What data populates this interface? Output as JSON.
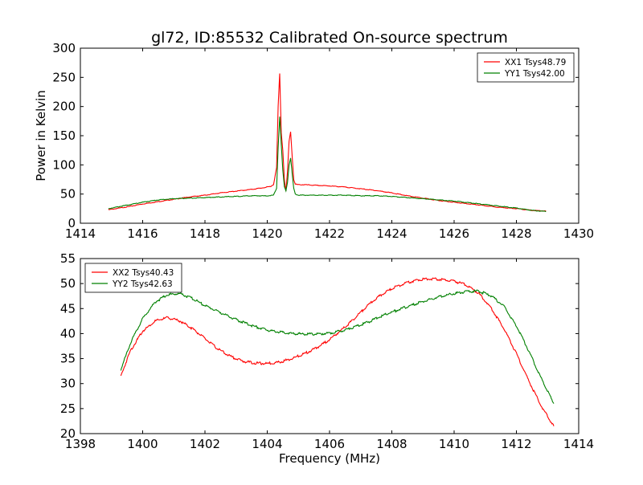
{
  "figure": {
    "title": "gl72, ID:85532 Calibrated On-source spectrum"
  },
  "chart_data": [
    {
      "type": "line",
      "title": "gl72, ID:85532 Calibrated On-source spectrum",
      "xlabel": "",
      "ylabel": "Power in Kelvin",
      "xlim": [
        1414,
        1430
      ],
      "ylim": [
        0,
        300
      ],
      "xticks": [
        1414,
        1416,
        1418,
        1420,
        1422,
        1424,
        1426,
        1428,
        1430
      ],
      "yticks": [
        0,
        50,
        100,
        150,
        200,
        250,
        300
      ],
      "legend_position": "top-right",
      "grid": false,
      "series": [
        {
          "name": "XX1 Tsys48.79",
          "color": "#ff0000",
          "x": [
            1414.9,
            1415.5,
            1416.0,
            1416.5,
            1417.0,
            1417.5,
            1418.0,
            1418.5,
            1419.0,
            1419.5,
            1419.9,
            1420.1,
            1420.2,
            1420.3,
            1420.35,
            1420.4,
            1420.45,
            1420.5,
            1420.55,
            1420.6,
            1420.65,
            1420.7,
            1420.75,
            1420.8,
            1420.85,
            1420.9,
            1421.0,
            1421.2,
            1421.5,
            1422.0,
            1422.5,
            1423.0,
            1423.5,
            1424.0,
            1424.5,
            1425.0,
            1425.5,
            1426.0,
            1426.5,
            1427.0,
            1427.5,
            1428.0,
            1428.5,
            1428.95
          ],
          "y": [
            23,
            28,
            33,
            37,
            41,
            45,
            48,
            52,
            55,
            58,
            61,
            63,
            66,
            95,
            200,
            257,
            155,
            125,
            75,
            55,
            88,
            140,
            157,
            115,
            75,
            67,
            66,
            66,
            65,
            64,
            62,
            59,
            56,
            52,
            47,
            43,
            39,
            36,
            33,
            30,
            27,
            25,
            22,
            21
          ]
        },
        {
          "name": "YY1 Tsys42.00",
          "color": "#008000",
          "x": [
            1414.9,
            1415.5,
            1416.0,
            1416.5,
            1417.0,
            1417.5,
            1418.0,
            1418.5,
            1419.0,
            1419.5,
            1420.0,
            1420.2,
            1420.3,
            1420.35,
            1420.4,
            1420.45,
            1420.5,
            1420.55,
            1420.6,
            1420.65,
            1420.7,
            1420.75,
            1420.8,
            1420.85,
            1420.9,
            1421.0,
            1421.5,
            1422.0,
            1422.5,
            1423.0,
            1423.5,
            1424.0,
            1424.5,
            1425.0,
            1425.5,
            1426.0,
            1426.5,
            1427.0,
            1427.5,
            1428.0,
            1428.5,
            1428.95
          ],
          "y": [
            25,
            31,
            36,
            40,
            42,
            43,
            44,
            45,
            46,
            47,
            47,
            48,
            60,
            130,
            183,
            135,
            90,
            62,
            56,
            70,
            100,
            112,
            85,
            60,
            50,
            48,
            48,
            48,
            48,
            47,
            47,
            46,
            44,
            42,
            40,
            38,
            35,
            32,
            29,
            26,
            22,
            20
          ]
        }
      ]
    },
    {
      "type": "line",
      "title": "",
      "xlabel": "Frequency (MHz)",
      "ylabel": "",
      "xlim": [
        1398,
        1414
      ],
      "ylim": [
        20,
        55
      ],
      "xticks": [
        1398,
        1400,
        1402,
        1404,
        1406,
        1408,
        1410,
        1412,
        1414
      ],
      "yticks": [
        20,
        25,
        30,
        35,
        40,
        45,
        50,
        55
      ],
      "legend_position": "top-left",
      "grid": false,
      "series": [
        {
          "name": "XX2 Tsys40.43",
          "color": "#ff0000",
          "x": [
            1399.3,
            1399.6,
            1400.0,
            1400.4,
            1400.8,
            1401.2,
            1401.6,
            1402.0,
            1402.4,
            1402.8,
            1403.2,
            1403.6,
            1404.0,
            1404.4,
            1404.8,
            1405.2,
            1405.6,
            1406.0,
            1406.4,
            1406.8,
            1407.2,
            1407.6,
            1408.0,
            1408.4,
            1408.8,
            1409.2,
            1409.6,
            1410.0,
            1410.4,
            1410.8,
            1411.2,
            1411.6,
            1412.0,
            1412.4,
            1412.8,
            1413.2
          ],
          "y": [
            31.5,
            36.5,
            40.5,
            42.5,
            43.2,
            42.5,
            41.0,
            39.0,
            37.0,
            35.5,
            34.5,
            34.1,
            34.0,
            34.3,
            35.0,
            36.0,
            37.2,
            38.8,
            40.8,
            43.0,
            45.5,
            47.5,
            49.0,
            50.0,
            50.7,
            51.0,
            50.8,
            50.5,
            49.7,
            48.0,
            45.0,
            41.0,
            36.0,
            30.5,
            25.5,
            21.5
          ]
        },
        {
          "name": "YY2 Tsys42.63",
          "color": "#008000",
          "x": [
            1399.3,
            1399.6,
            1400.0,
            1400.4,
            1400.8,
            1401.2,
            1401.6,
            1402.0,
            1402.4,
            1402.8,
            1403.2,
            1403.6,
            1404.0,
            1404.4,
            1404.8,
            1405.2,
            1405.6,
            1406.0,
            1406.4,
            1406.8,
            1407.2,
            1407.6,
            1408.0,
            1408.4,
            1408.8,
            1409.2,
            1409.6,
            1410.0,
            1410.4,
            1410.8,
            1411.2,
            1411.6,
            1412.0,
            1412.4,
            1412.8,
            1413.2
          ],
          "y": [
            32.8,
            38.0,
            43.0,
            46.3,
            47.8,
            48.0,
            47.0,
            45.6,
            44.5,
            43.3,
            42.3,
            41.4,
            40.7,
            40.3,
            40.0,
            39.9,
            39.9,
            40.1,
            40.6,
            41.3,
            42.2,
            43.3,
            44.3,
            45.2,
            46.0,
            46.8,
            47.5,
            48.0,
            48.4,
            48.5,
            47.5,
            45.5,
            41.5,
            36.5,
            31.0,
            26.0
          ]
        }
      ]
    }
  ]
}
